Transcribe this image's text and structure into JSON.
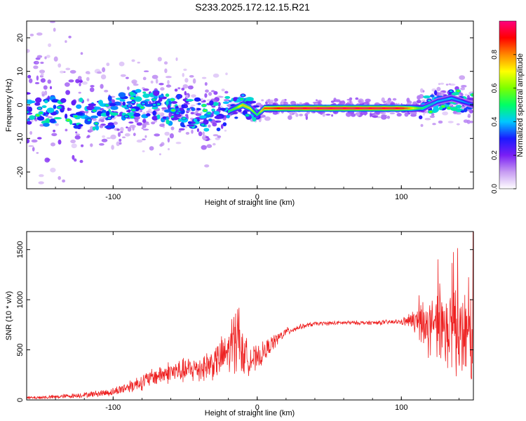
{
  "title": "S233.2025.172.12.15.R21",
  "chart_data": [
    {
      "type": "heatmap",
      "title": "S233.2025.172.12.15.R21",
      "xlabel": "Height of straight line (km)",
      "ylabel": "Frequency (Hz)",
      "xlim": [
        -160,
        150
      ],
      "ylim": [
        -25,
        25
      ],
      "x_ticks": [
        -100,
        0,
        100
      ],
      "y_ticks": [
        -20,
        -10,
        0,
        10,
        20
      ],
      "x_tick_labels": [
        "-100",
        "0",
        "100"
      ],
      "y_tick_labels": [
        "-20",
        "-10",
        "0",
        "10",
        "20"
      ],
      "colorbar": {
        "label": "Normalized spectral amplitude",
        "range": [
          0,
          1
        ],
        "ticks": [
          0.0,
          0.2,
          0.4,
          0.6,
          0.8
        ],
        "tick_labels": [
          "0.0",
          "0.2",
          "0.4",
          "0.6",
          "0.8"
        ],
        "colormap": [
          "#ffffff",
          "#c79cf2",
          "#7a1ef5",
          "#1a1aff",
          "#00c8ff",
          "#00ff66",
          "#7cff00",
          "#ffff00",
          "#ff8800",
          "#ff0000",
          "#ff007f"
        ]
      },
      "ridge": {
        "x": [
          -160,
          -140,
          -120,
          -100,
          -80,
          -60,
          -40,
          -25,
          -15,
          -10,
          -5,
          0,
          5,
          20,
          50,
          100,
          115,
          125,
          135,
          150
        ],
        "freq": [
          -1,
          -2,
          -3,
          -2,
          0,
          -1,
          -3,
          -3,
          -1,
          0,
          -1,
          -3,
          -1,
          -1,
          -1,
          -1,
          -1,
          1,
          2,
          0
        ],
        "amplitude": [
          0.3,
          0.35,
          0.35,
          0.4,
          0.4,
          0.35,
          0.35,
          0.4,
          0.6,
          0.75,
          0.7,
          0.5,
          0.85,
          0.95,
          0.98,
          0.95,
          0.5,
          0.4,
          0.4,
          0.35
        ]
      }
    },
    {
      "type": "line",
      "xlabel": "Height of straight line (km)",
      "ylabel": "SNR (10 * v/v)",
      "xlim": [
        -160,
        150
      ],
      "ylim": [
        0,
        1680
      ],
      "x_ticks": [
        -100,
        0,
        100
      ],
      "y_ticks": [
        0,
        500,
        1000,
        1500
      ],
      "x_tick_labels": [
        "-100",
        "0",
        "100"
      ],
      "y_tick_labels": [
        "0",
        "500",
        "1000",
        "1500"
      ],
      "color": "#ee2222",
      "series": [
        {
          "x": [
            -160,
            -140,
            -120,
            -100,
            -90,
            -80,
            -70,
            -60,
            -50,
            -40,
            -30,
            -20,
            -15,
            -10,
            -5,
            0,
            10,
            20,
            30,
            40,
            60,
            80,
            100,
            110,
            120,
            130,
            140,
            150
          ],
          "y": [
            20,
            30,
            50,
            80,
            130,
            180,
            240,
            280,
            290,
            320,
            370,
            480,
            560,
            450,
            420,
            400,
            560,
            680,
            730,
            760,
            770,
            770,
            780,
            790,
            700,
            650,
            600,
            600
          ],
          "noise": [
            15,
            20,
            25,
            40,
            60,
            80,
            90,
            110,
            120,
            140,
            160,
            220,
            250,
            200,
            150,
            120,
            80,
            40,
            25,
            20,
            20,
            20,
            25,
            120,
            300,
            400,
            450,
            500
          ]
        }
      ]
    }
  ]
}
